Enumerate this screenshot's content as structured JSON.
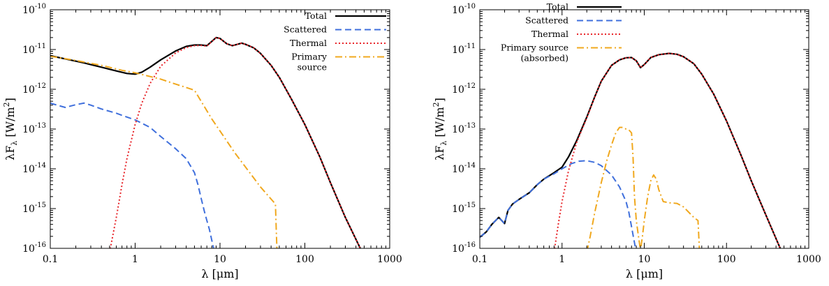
{
  "chart_data": [
    {
      "type": "line",
      "xscale": "log",
      "yscale": "log",
      "xlim": [
        0.1,
        1000
      ],
      "ylim": [
        1e-16,
        1e-10
      ],
      "xticks": [
        {
          "v": 0.1,
          "label": "0.1"
        },
        {
          "v": 1,
          "label": "1"
        },
        {
          "v": 10,
          "label": "10"
        },
        {
          "v": 100,
          "label": "100"
        },
        {
          "v": 1000,
          "label": "1000"
        }
      ],
      "yticks": [
        {
          "v": 1e-16,
          "mant": "10",
          "exp": "-16"
        },
        {
          "v": 1e-15,
          "mant": "10",
          "exp": "-15"
        },
        {
          "v": 1e-14,
          "mant": "10",
          "exp": "-14"
        },
        {
          "v": 1e-13,
          "mant": "10",
          "exp": "-13"
        },
        {
          "v": 1e-12,
          "mant": "10",
          "exp": "-12"
        },
        {
          "v": 1e-11,
          "mant": "10",
          "exp": "-11"
        },
        {
          "v": 1e-10,
          "mant": "10",
          "exp": "-10"
        }
      ],
      "xlabel": "λ [μm]",
      "ylabel": "λF_λ [W/m^2]",
      "legend": "top-right",
      "series": [
        {
          "name": "Total",
          "color": "#000000",
          "style": "solid",
          "x": [
            0.1,
            0.15,
            0.25,
            0.4,
            0.6,
            0.8,
            1.0,
            1.2,
            1.5,
            2,
            3,
            4,
            5,
            6,
            7,
            8,
            9,
            10,
            12,
            14,
            16,
            18,
            20,
            25,
            30,
            40,
            50,
            70,
            100,
            150,
            200,
            300,
            450
          ],
          "y": [
            7e-12,
            5.8e-12,
            4.6e-12,
            3.6e-12,
            2.9e-12,
            2.5e-12,
            2.4e-12,
            2.7e-12,
            3.6e-12,
            5.5e-12,
            9.2e-12,
            1.2e-11,
            1.3e-11,
            1.3e-11,
            1.25e-11,
            1.6e-11,
            2e-11,
            1.9e-11,
            1.4e-11,
            1.25e-11,
            1.35e-11,
            1.45e-11,
            1.35e-11,
            1.1e-11,
            8e-12,
            4e-12,
            2e-12,
            5.5e-13,
            1.3e-13,
            2e-14,
            4.5e-15,
            6e-16,
            1e-16
          ]
        },
        {
          "name": "Scattered",
          "color": "#3f6fdc",
          "style": "dashed",
          "x": [
            0.1,
            0.12,
            0.15,
            0.2,
            0.25,
            0.3,
            0.4,
            0.6,
            0.8,
            1.0,
            1.5,
            2,
            3,
            4,
            5,
            5.5,
            6,
            6.5,
            7,
            7.5,
            8,
            8.5
          ],
          "y": [
            4.5e-13,
            4e-13,
            3.5e-13,
            4.1e-13,
            4.5e-13,
            4e-13,
            3.2e-13,
            2.5e-13,
            2e-13,
            1.7e-13,
            1.1e-13,
            6.5e-14,
            3.2e-14,
            1.8e-14,
            8e-15,
            4e-15,
            1.8e-15,
            9e-16,
            5e-16,
            3e-16,
            1.6e-16,
            9e-17
          ]
        },
        {
          "name": "Thermal",
          "color": "#e8262b",
          "style": "dotted",
          "x": [
            0.5,
            0.6,
            0.7,
            0.8,
            1.0,
            1.2,
            1.5,
            2,
            3,
            4,
            5,
            6,
            7,
            8,
            9,
            10,
            12,
            14,
            16,
            18,
            20,
            25,
            30,
            40,
            50,
            70,
            100,
            150,
            200,
            300,
            450
          ],
          "y": [
            8e-17,
            6e-16,
            4e-15,
            1.8e-14,
            1.3e-13,
            4.5e-13,
            1.4e-12,
            3.8e-12,
            8.2e-12,
            1.12e-11,
            1.25e-11,
            1.27e-11,
            1.22e-11,
            1.58e-11,
            1.98e-11,
            1.9e-11,
            1.4e-11,
            1.25e-11,
            1.35e-11,
            1.45e-11,
            1.35e-11,
            1.1e-11,
            8e-12,
            4e-12,
            2e-12,
            5.5e-13,
            1.3e-13,
            2e-14,
            4.5e-15,
            6e-16,
            1e-16
          ]
        },
        {
          "name": "Primary source",
          "color": "#f0a81e",
          "style": "dashdot",
          "x": [
            0.1,
            0.2,
            0.4,
            0.7,
            1.0,
            2,
            3,
            5,
            8,
            15,
            30,
            45,
            46,
            47
          ],
          "y": [
            6.8e-12,
            5.3e-12,
            4e-12,
            3e-12,
            2.6e-12,
            1.8e-12,
            1.35e-12,
            9.5e-13,
            1.8e-13,
            2.5e-14,
            3.5e-15,
            1.3e-15,
            3e-16,
            8e-17
          ]
        }
      ],
      "legend_labels": [
        [
          "Total"
        ],
        [
          "Scattered"
        ],
        [
          "Thermal"
        ],
        [
          "Primary",
          "source"
        ]
      ]
    },
    {
      "type": "line",
      "xscale": "log",
      "yscale": "log",
      "xlim": [
        0.1,
        1000
      ],
      "ylim": [
        1e-16,
        1e-10
      ],
      "xticks": [
        {
          "v": 0.1,
          "label": "0.1"
        },
        {
          "v": 1,
          "label": "1"
        },
        {
          "v": 10,
          "label": "10"
        },
        {
          "v": 100,
          "label": "100"
        },
        {
          "v": 1000,
          "label": "1000"
        }
      ],
      "yticks": [
        {
          "v": 1e-16,
          "mant": "10",
          "exp": "-16"
        },
        {
          "v": 1e-15,
          "mant": "10",
          "exp": "-15"
        },
        {
          "v": 1e-14,
          "mant": "10",
          "exp": "-14"
        },
        {
          "v": 1e-13,
          "mant": "10",
          "exp": "-13"
        },
        {
          "v": 1e-12,
          "mant": "10",
          "exp": "-12"
        },
        {
          "v": 1e-11,
          "mant": "10",
          "exp": "-11"
        },
        {
          "v": 1e-10,
          "mant": "10",
          "exp": "-10"
        }
      ],
      "xlabel": "λ [μm]",
      "ylabel": "λF_λ [W/m^2]",
      "legend": "top-left",
      "series": [
        {
          "name": "Total",
          "color": "#000000",
          "style": "solid",
          "x": [
            0.1,
            0.12,
            0.14,
            0.17,
            0.2,
            0.22,
            0.25,
            0.3,
            0.4,
            0.5,
            0.6,
            0.8,
            1.0,
            1.2,
            1.5,
            2,
            2.5,
            3,
            4,
            5,
            6,
            7,
            8,
            9,
            10,
            12,
            15,
            20,
            25,
            30,
            40,
            50,
            70,
            100,
            150,
            200,
            300,
            450
          ],
          "y": [
            1.9e-16,
            2.6e-16,
            4e-16,
            6e-16,
            4.2e-16,
            9e-16,
            1.3e-15,
            1.7e-15,
            2.5e-15,
            4e-15,
            5.5e-15,
            8e-15,
            1.1e-14,
            2e-14,
            5e-14,
            2e-13,
            6.5e-13,
            1.6e-12,
            4e-12,
            5.5e-12,
            6.2e-12,
            6.3e-12,
            5.2e-12,
            3.5e-12,
            4.2e-12,
            6.3e-12,
            7.4e-12,
            8e-12,
            7.6e-12,
            6.6e-12,
            4.4e-12,
            2.4e-12,
            7.5e-13,
            1.6e-13,
            2.2e-14,
            5e-15,
            7e-16,
            1e-16
          ]
        },
        {
          "name": "Scattered",
          "color": "#3f6fdc",
          "style": "dashed",
          "x": [
            0.1,
            0.12,
            0.14,
            0.17,
            0.2,
            0.22,
            0.25,
            0.3,
            0.4,
            0.5,
            0.6,
            0.8,
            1.0,
            1.3,
            1.6,
            2,
            2.5,
            3,
            4,
            5,
            6,
            6.5,
            7,
            7.5,
            8
          ],
          "y": [
            1.9e-16,
            2.6e-16,
            4e-16,
            6e-16,
            4.2e-16,
            9e-16,
            1.3e-15,
            1.7e-15,
            2.5e-15,
            4e-15,
            5.5e-15,
            7.5e-15,
            1e-14,
            1.35e-14,
            1.55e-14,
            1.6e-14,
            1.45e-14,
            1.2e-14,
            7e-15,
            3.5e-15,
            1.5e-15,
            8e-16,
            3.5e-16,
            1.6e-16,
            8e-17
          ]
        },
        {
          "name": "Thermal",
          "color": "#e8262b",
          "style": "dotted",
          "x": [
            0.8,
            0.9,
            1.0,
            1.2,
            1.5,
            2,
            2.5,
            3,
            4,
            5,
            6,
            7,
            8,
            9,
            10,
            12,
            15,
            20,
            25,
            30,
            40,
            50,
            70,
            100,
            150,
            200,
            300,
            450
          ],
          "y": [
            8e-17,
            4e-16,
            1.5e-15,
            9e-15,
            4.5e-14,
            1.9e-13,
            6.4e-13,
            1.6e-12,
            4e-12,
            5.5e-12,
            6.2e-12,
            6.3e-12,
            5.2e-12,
            3.5e-12,
            4.2e-12,
            6.3e-12,
            7.4e-12,
            8e-12,
            7.6e-12,
            6.6e-12,
            4.4e-12,
            2.4e-12,
            7.5e-13,
            1.6e-13,
            2.2e-14,
            5e-15,
            7e-16,
            1e-16
          ]
        },
        {
          "name": "Primary source (absorbed)",
          "color": "#f0a81e",
          "style": "dashdot",
          "x": [
            2.0,
            2.2,
            2.5,
            3,
            3.5,
            4,
            4.5,
            5,
            5.5,
            6,
            6.5,
            7,
            7.3,
            7.6,
            8,
            8.5,
            9.0,
            9.5,
            10,
            11,
            12,
            13,
            14,
            15,
            17,
            20,
            25,
            30,
            40,
            45,
            46,
            47
          ],
          "y": [
            8e-17,
            2e-16,
            8e-16,
            4.5e-15,
            1.6e-14,
            4e-14,
            8e-14,
            1.1e-13,
            1.1e-13,
            1e-13,
            9.5e-14,
            8e-14,
            2e-14,
            2e-15,
            5e-16,
            2e-16,
            9e-17,
            2e-16,
            5e-16,
            2e-15,
            5e-15,
            7e-15,
            5.5e-15,
            3e-15,
            1.5e-15,
            1.4e-15,
            1.35e-15,
            1.1e-15,
            6e-16,
            5e-16,
            2e-16,
            8e-17
          ]
        }
      ],
      "legend_labels": [
        [
          "Total"
        ],
        [
          "Scattered"
        ],
        [
          "Thermal"
        ],
        [
          "Primary source",
          "(absorbed)"
        ]
      ]
    }
  ]
}
